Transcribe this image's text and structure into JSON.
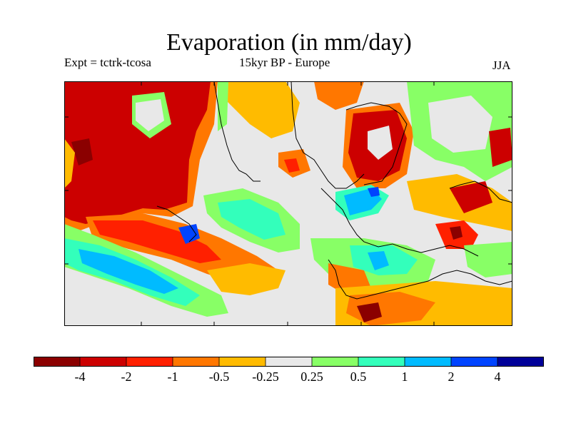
{
  "title": "Evaporation (in mm/day)",
  "experiment": "Expt = tctrk-tcosa",
  "period": "15kyr BP - Europe",
  "season": "JJA",
  "colorbar": {
    "colors": [
      "#8b0000",
      "#cc0000",
      "#ff2000",
      "#ff7700",
      "#ffbb00",
      "#e8e8e8",
      "#88ff66",
      "#33ffbb",
      "#00bbff",
      "#0044ff",
      "#000099"
    ],
    "labels": [
      "-4",
      "-2",
      "-1",
      "-0.5",
      "-0.25",
      "0.25",
      "0.5",
      "1",
      "2",
      "4"
    ]
  }
}
